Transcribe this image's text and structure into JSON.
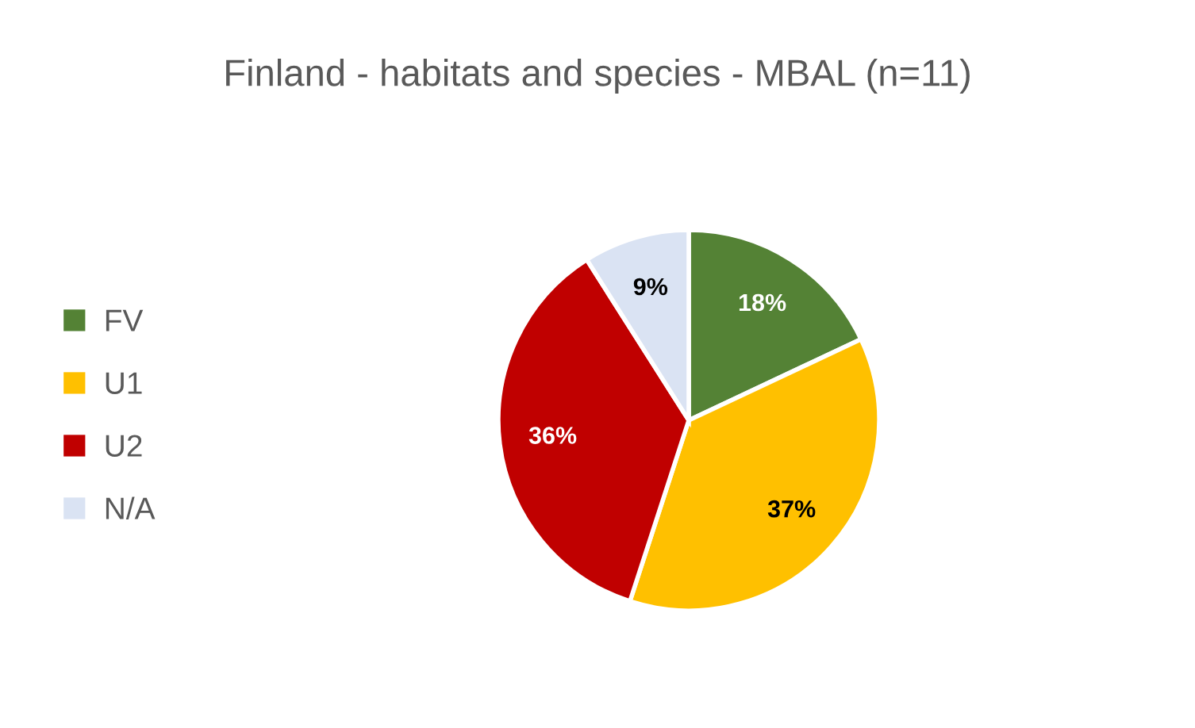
{
  "chart_data": {
    "type": "pie",
    "title": "Finland - habitats and species - MBAL (n=11)",
    "categories": [
      "FV",
      "U1",
      "U2",
      "N/A"
    ],
    "values": [
      18,
      37,
      36,
      9
    ],
    "colors": [
      "#548235",
      "#ffc000",
      "#c00000",
      "#dae3f3"
    ],
    "value_labels": [
      "18%",
      "37%",
      "36%",
      "9%"
    ],
    "legend": "left"
  }
}
